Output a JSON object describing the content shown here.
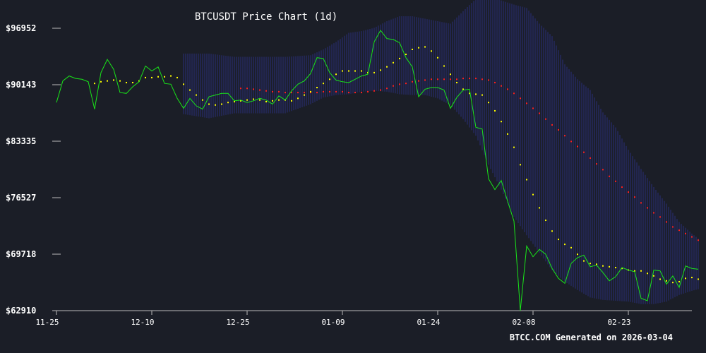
{
  "chart_data": {
    "type": "line",
    "title": "BTCUSDT Price Chart (1d)",
    "xlabel": "",
    "ylabel": "",
    "x_tick_labels": [
      "11-25",
      "12-10",
      "12-25",
      "01-09",
      "01-24",
      "02-08",
      "02-23"
    ],
    "y_tick_labels": [
      "$96952",
      "$90143",
      "$83335",
      "$76527",
      "$69718",
      "$62910"
    ],
    "ylim": [
      62910,
      96952
    ],
    "x_range_days": [
      0,
      98
    ],
    "grid": false,
    "legend": "none",
    "colors": {
      "background": "#1b1e27",
      "price": "#19e619",
      "ma_short": "#ffff00",
      "ma_long": "#ff2020",
      "band": "#2a2f7a",
      "axis": "#bbbbbb",
      "text": "#ffffff"
    },
    "series": [
      {
        "key": "price",
        "style": "line",
        "points": [
          [
            0,
            88000
          ],
          [
            1,
            90600
          ],
          [
            2,
            91200
          ],
          [
            3,
            90900
          ],
          [
            4,
            90800
          ],
          [
            5,
            90500
          ],
          [
            6,
            87200
          ],
          [
            7,
            91600
          ],
          [
            8,
            93200
          ],
          [
            9,
            92000
          ],
          [
            10,
            89200
          ],
          [
            11,
            89100
          ],
          [
            12,
            89900
          ],
          [
            13,
            90500
          ],
          [
            14,
            92400
          ],
          [
            15,
            91800
          ],
          [
            16,
            92300
          ],
          [
            17,
            90300
          ],
          [
            18,
            90200
          ],
          [
            19,
            88500
          ],
          [
            20,
            87300
          ],
          [
            21,
            88500
          ],
          [
            22,
            87600
          ],
          [
            23,
            87200
          ],
          [
            24,
            88700
          ],
          [
            25,
            88900
          ],
          [
            26,
            89100
          ],
          [
            27,
            89100
          ],
          [
            28,
            88200
          ],
          [
            29,
            88300
          ],
          [
            30,
            88000
          ],
          [
            31,
            88200
          ],
          [
            32,
            88500
          ],
          [
            33,
            88300
          ],
          [
            34,
            87800
          ],
          [
            35,
            88800
          ],
          [
            36,
            88300
          ],
          [
            37,
            89400
          ],
          [
            38,
            90200
          ],
          [
            39,
            90600
          ],
          [
            40,
            91500
          ],
          [
            41,
            93400
          ],
          [
            42,
            93300
          ],
          [
            43,
            91600
          ],
          [
            44,
            90700
          ],
          [
            45,
            90500
          ],
          [
            46,
            90400
          ],
          [
            47,
            90800
          ],
          [
            48,
            91200
          ],
          [
            49,
            91400
          ],
          [
            50,
            95300
          ],
          [
            51,
            96700
          ],
          [
            51.5,
            96200
          ],
          [
            52,
            95700
          ],
          [
            53,
            95600
          ],
          [
            54,
            95200
          ],
          [
            55,
            93400
          ],
          [
            56,
            92300
          ],
          [
            57,
            88700
          ],
          [
            58,
            89600
          ],
          [
            59,
            89800
          ],
          [
            60,
            89800
          ],
          [
            61,
            89500
          ],
          [
            62,
            87300
          ],
          [
            63,
            88600
          ],
          [
            64,
            89500
          ],
          [
            65,
            89600
          ],
          [
            66,
            85000
          ],
          [
            67,
            84800
          ],
          [
            68,
            78800
          ],
          [
            69,
            77500
          ],
          [
            70,
            78600
          ],
          [
            71,
            76100
          ],
          [
            72,
            73700
          ],
          [
            73,
            62910
          ],
          [
            74,
            70700
          ],
          [
            75,
            69400
          ],
          [
            76,
            70300
          ],
          [
            77,
            69700
          ],
          [
            78,
            68000
          ],
          [
            79,
            66800
          ],
          [
            80,
            66200
          ],
          [
            81,
            68600
          ],
          [
            82,
            69300
          ],
          [
            83,
            69600
          ],
          [
            84,
            68200
          ],
          [
            85,
            68400
          ],
          [
            86,
            67500
          ],
          [
            87,
            66500
          ],
          [
            88,
            67000
          ],
          [
            89,
            68100
          ],
          [
            90,
            67800
          ],
          [
            91,
            67600
          ],
          [
            92,
            64400
          ],
          [
            93,
            64100
          ],
          [
            94,
            67800
          ],
          [
            95,
            67700
          ],
          [
            96,
            66100
          ],
          [
            97,
            67100
          ],
          [
            98,
            65700
          ],
          [
            99,
            68300
          ],
          [
            100,
            68000
          ],
          [
            101,
            67900
          ]
        ]
      },
      {
        "key": "ma_short",
        "style": "dots",
        "points": [
          [
            6,
            90300
          ],
          [
            7,
            90500
          ],
          [
            8,
            90600
          ],
          [
            9,
            90700
          ],
          [
            10,
            90600
          ],
          [
            11,
            90400
          ],
          [
            12,
            90400
          ],
          [
            13,
            90600
          ],
          [
            14,
            91000
          ],
          [
            15,
            91000
          ],
          [
            16,
            91100
          ],
          [
            17,
            91100
          ],
          [
            18,
            91200
          ],
          [
            19,
            91000
          ],
          [
            20,
            90200
          ],
          [
            21,
            89500
          ],
          [
            22,
            88900
          ],
          [
            23,
            88300
          ],
          [
            24,
            87800
          ],
          [
            25,
            87700
          ],
          [
            26,
            87800
          ],
          [
            27,
            88000
          ],
          [
            28,
            88100
          ],
          [
            29,
            88200
          ],
          [
            30,
            88300
          ],
          [
            31,
            88400
          ],
          [
            32,
            88300
          ],
          [
            33,
            88100
          ],
          [
            34,
            88200
          ],
          [
            35,
            88300
          ],
          [
            36,
            88300
          ],
          [
            37,
            88200
          ],
          [
            38,
            88500
          ],
          [
            39,
            88900
          ],
          [
            40,
            89300
          ],
          [
            41,
            89800
          ],
          [
            42,
            90300
          ],
          [
            43,
            90800
          ],
          [
            44,
            91400
          ],
          [
            45,
            91800
          ],
          [
            46,
            91800
          ],
          [
            47,
            91800
          ],
          [
            48,
            91800
          ],
          [
            49,
            91600
          ],
          [
            50,
            91600
          ],
          [
            51,
            91900
          ],
          [
            52,
            92300
          ],
          [
            53,
            92800
          ],
          [
            54,
            93300
          ],
          [
            55,
            93800
          ],
          [
            56,
            94400
          ],
          [
            57,
            94600
          ],
          [
            58,
            94700
          ],
          [
            59,
            94200
          ],
          [
            60,
            93400
          ],
          [
            61,
            92400
          ],
          [
            62,
            91400
          ],
          [
            63,
            90400
          ],
          [
            64,
            89600
          ],
          [
            65,
            89100
          ],
          [
            66,
            89000
          ],
          [
            67,
            88900
          ],
          [
            68,
            88000
          ],
          [
            69,
            87000
          ],
          [
            70,
            85700
          ],
          [
            71,
            84200
          ],
          [
            72,
            82600
          ],
          [
            73,
            80500
          ],
          [
            74,
            78700
          ],
          [
            75,
            76900
          ],
          [
            76,
            75300
          ],
          [
            77,
            73800
          ],
          [
            78,
            72500
          ],
          [
            79,
            71500
          ],
          [
            80,
            70900
          ],
          [
            81,
            70500
          ],
          [
            82,
            69700
          ],
          [
            83,
            68900
          ],
          [
            84,
            68600
          ],
          [
            85,
            68500
          ],
          [
            86,
            68300
          ],
          [
            87,
            68200
          ],
          [
            88,
            68100
          ],
          [
            89,
            68000
          ],
          [
            90,
            67800
          ],
          [
            91,
            67700
          ],
          [
            92,
            67700
          ],
          [
            93,
            67400
          ],
          [
            94,
            67100
          ],
          [
            95,
            66700
          ],
          [
            96,
            66500
          ],
          [
            97,
            66300
          ],
          [
            98,
            66400
          ],
          [
            99,
            66800
          ],
          [
            100,
            66900
          ],
          [
            101,
            66700
          ]
        ]
      },
      {
        "key": "ma_long",
        "style": "dots",
        "points": [
          [
            29,
            89700
          ],
          [
            30,
            89700
          ],
          [
            31,
            89600
          ],
          [
            32,
            89500
          ],
          [
            33,
            89400
          ],
          [
            34,
            89300
          ],
          [
            35,
            89300
          ],
          [
            36,
            89200
          ],
          [
            37,
            89200
          ],
          [
            38,
            89200
          ],
          [
            39,
            89200
          ],
          [
            40,
            89200
          ],
          [
            41,
            89200
          ],
          [
            42,
            89300
          ],
          [
            43,
            89300
          ],
          [
            44,
            89300
          ],
          [
            45,
            89300
          ],
          [
            46,
            89200
          ],
          [
            47,
            89200
          ],
          [
            48,
            89200
          ],
          [
            49,
            89300
          ],
          [
            50,
            89400
          ],
          [
            51,
            89500
          ],
          [
            52,
            89700
          ],
          [
            53,
            90000
          ],
          [
            54,
            90200
          ],
          [
            55,
            90300
          ],
          [
            56,
            90500
          ],
          [
            57,
            90600
          ],
          [
            58,
            90700
          ],
          [
            59,
            90800
          ],
          [
            60,
            90800
          ],
          [
            61,
            90800
          ],
          [
            62,
            90800
          ],
          [
            63,
            90800
          ],
          [
            64,
            90900
          ],
          [
            65,
            90900
          ],
          [
            66,
            90900
          ],
          [
            67,
            90800
          ],
          [
            68,
            90700
          ],
          [
            69,
            90400
          ],
          [
            70,
            90000
          ],
          [
            71,
            89600
          ],
          [
            72,
            89100
          ],
          [
            73,
            88500
          ],
          [
            74,
            87900
          ],
          [
            75,
            87300
          ],
          [
            76,
            86700
          ],
          [
            77,
            86000
          ],
          [
            78,
            85300
          ],
          [
            79,
            84700
          ],
          [
            80,
            84000
          ],
          [
            81,
            83300
          ],
          [
            82,
            82700
          ],
          [
            83,
            82000
          ],
          [
            84,
            81300
          ],
          [
            85,
            80600
          ],
          [
            86,
            79900
          ],
          [
            87,
            79100
          ],
          [
            88,
            78500
          ],
          [
            89,
            77800
          ],
          [
            90,
            77200
          ],
          [
            91,
            76600
          ],
          [
            92,
            75900
          ],
          [
            93,
            75300
          ],
          [
            94,
            74700
          ],
          [
            95,
            74200
          ],
          [
            96,
            73600
          ],
          [
            97,
            73000
          ],
          [
            98,
            72600
          ],
          [
            99,
            72200
          ],
          [
            100,
            71800
          ],
          [
            101,
            71400
          ]
        ]
      }
    ],
    "band": [
      [
        20,
        93900,
        86600
      ],
      [
        24,
        93900,
        86100
      ],
      [
        28,
        93500,
        86700
      ],
      [
        32,
        93500,
        86700
      ],
      [
        36,
        93500,
        86700
      ],
      [
        40,
        93700,
        87800
      ],
      [
        42,
        94400,
        88600
      ],
      [
        44,
        95300,
        88900
      ],
      [
        46,
        96400,
        89000
      ],
      [
        48,
        96600,
        89300
      ],
      [
        50,
        97000,
        89400
      ],
      [
        52,
        97800,
        89300
      ],
      [
        54,
        98400,
        89000
      ],
      [
        56,
        98400,
        88900
      ],
      [
        58,
        98100,
        88900
      ],
      [
        60,
        97800,
        88500
      ],
      [
        62,
        97500,
        87700
      ],
      [
        64,
        99000,
        86000
      ],
      [
        66,
        100500,
        84000
      ],
      [
        68,
        101000,
        80500
      ],
      [
        70,
        100300,
        77500
      ],
      [
        72,
        99800,
        74200
      ],
      [
        74,
        99400,
        72000
      ],
      [
        76,
        97500,
        69900
      ],
      [
        78,
        96000,
        67800
      ],
      [
        80,
        92600,
        66400
      ],
      [
        82,
        90800,
        65400
      ],
      [
        84,
        89500,
        64500
      ],
      [
        86,
        86800,
        64200
      ],
      [
        88,
        85000,
        64100
      ],
      [
        90,
        82300,
        64000
      ],
      [
        92,
        80000,
        63700
      ],
      [
        94,
        77800,
        63700
      ],
      [
        96,
        75800,
        64000
      ],
      [
        98,
        73600,
        64800
      ],
      [
        100,
        72200,
        65300
      ],
      [
        101,
        71600,
        65500
      ]
    ]
  },
  "watermark": "BTCC.COM Generated on 2026-03-04"
}
